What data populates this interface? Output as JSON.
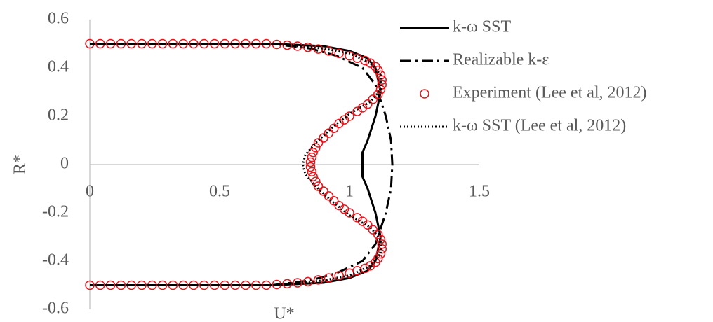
{
  "chart_data": {
    "type": "line",
    "x_label": "U*",
    "y_label": "R*",
    "xlim": [
      0,
      1.5
    ],
    "xticks": [
      0,
      0.5,
      1,
      1.5
    ],
    "ylim": [
      -0.6,
      0.6
    ],
    "yticks": [
      -0.6,
      -0.4,
      -0.2,
      0,
      0.2,
      0.4,
      0.6
    ],
    "grid": false,
    "legend": "right",
    "series": [
      {
        "name": "k-ω SST",
        "color": "#000000",
        "style": "solid",
        "x": [
          0,
          0.7,
          0.9,
          1.0,
          1.07,
          1.1,
          1.12,
          1.1,
          1.07,
          1.05,
          1.05,
          1.07,
          1.1,
          1.12,
          1.1,
          1.07,
          1.0,
          0.9,
          0.7,
          0
        ],
        "values": [
          0.5,
          0.5,
          0.49,
          0.47,
          0.44,
          0.4,
          0.3,
          0.2,
          0.1,
          0.05,
          -0.05,
          -0.1,
          -0.2,
          -0.3,
          -0.4,
          -0.44,
          -0.47,
          -0.49,
          -0.5,
          -0.5
        ]
      },
      {
        "name": "Realizable k-ε",
        "color": "#000000",
        "style": "dashdot",
        "x": [
          0,
          0.7,
          0.85,
          0.95,
          1.05,
          1.1,
          1.14,
          1.16,
          1.165,
          1.16,
          1.14,
          1.1,
          1.05,
          0.95,
          0.85,
          0.7,
          0
        ],
        "values": [
          0.5,
          0.5,
          0.48,
          0.45,
          0.4,
          0.33,
          0.2,
          0.1,
          0,
          -0.1,
          -0.2,
          -0.33,
          -0.4,
          -0.45,
          -0.48,
          -0.5,
          -0.5
        ]
      },
      {
        "name": "Experiment (Lee et al, 2012)",
        "color": "#e8141c",
        "style": "circle",
        "x": [
          0,
          0.04,
          0.08,
          0.12,
          0.16,
          0.2,
          0.24,
          0.28,
          0.32,
          0.36,
          0.4,
          0.44,
          0.48,
          0.52,
          0.56,
          0.6,
          0.64,
          0.68,
          0.72,
          0.76,
          0.8,
          0.84,
          0.88,
          0.92,
          0.96,
          1,
          1.03,
          1.06,
          1.08,
          1.1,
          1.11,
          1.12,
          1.125,
          1.125,
          1.12,
          1.11,
          1.09,
          1.07,
          1.05,
          1.03,
          1,
          0.98,
          0.96,
          0.94,
          0.92,
          0.9,
          0.88,
          0.87,
          0.86,
          0.855,
          0.85,
          0.85,
          0.855,
          0.86,
          0.87,
          0.88,
          0.9,
          0.92,
          0.94,
          0.96,
          0.98,
          1,
          1.03,
          1.05,
          1.07,
          1.09,
          1.11,
          1.12,
          1.125,
          1.125,
          1.12,
          1.11,
          1.1,
          1.08,
          1.06,
          1.03,
          1,
          0.96,
          0.92,
          0.88,
          0.84,
          0.8,
          0.76,
          0.72,
          0.68,
          0.64,
          0.6,
          0.56,
          0.52,
          0.48,
          0.44,
          0.4,
          0.36,
          0.32,
          0.28,
          0.24,
          0.2,
          0.16,
          0.12,
          0.08,
          0.04,
          0
        ],
        "values": [
          0.5,
          0.5,
          0.5,
          0.5,
          0.5,
          0.5,
          0.5,
          0.5,
          0.5,
          0.5,
          0.5,
          0.5,
          0.5,
          0.5,
          0.5,
          0.5,
          0.5,
          0.5,
          0.497,
          0.494,
          0.49,
          0.485,
          0.478,
          0.47,
          0.46,
          0.45,
          0.44,
          0.43,
          0.42,
          0.405,
          0.39,
          0.37,
          0.35,
          0.33,
          0.31,
          0.29,
          0.27,
          0.25,
          0.235,
          0.22,
          0.2,
          0.185,
          0.17,
          0.15,
          0.13,
          0.11,
          0.09,
          0.07,
          0.05,
          0.03,
          0.01,
          -0.01,
          -0.03,
          -0.05,
          -0.07,
          -0.09,
          -0.11,
          -0.13,
          -0.15,
          -0.17,
          -0.185,
          -0.2,
          -0.22,
          -0.235,
          -0.25,
          -0.27,
          -0.29,
          -0.31,
          -0.33,
          -0.35,
          -0.37,
          -0.39,
          -0.405,
          -0.42,
          -0.43,
          -0.44,
          -0.45,
          -0.46,
          -0.47,
          -0.478,
          -0.485,
          -0.49,
          -0.494,
          -0.497,
          -0.5,
          -0.5,
          -0.5,
          -0.5,
          -0.5,
          -0.5,
          -0.5,
          -0.5,
          -0.5,
          -0.5,
          -0.5,
          -0.5,
          -0.5,
          -0.5,
          -0.5,
          -0.5,
          -0.5,
          -0.5
        ]
      },
      {
        "name": "k-ω SST (Lee et al, 2012)",
        "color": "#000000",
        "style": "dotted",
        "x": [
          0,
          0.7,
          0.9,
          1.0,
          1.08,
          1.12,
          1.12,
          1.08,
          1.0,
          0.93,
          0.87,
          0.83,
          0.82,
          0.83,
          0.87,
          0.93,
          1.0,
          1.08,
          1.12,
          1.12,
          1.08,
          1.0,
          0.9,
          0.7,
          0
        ],
        "values": [
          0.5,
          0.5,
          0.48,
          0.46,
          0.42,
          0.37,
          0.31,
          0.26,
          0.21,
          0.15,
          0.09,
          0.04,
          0,
          -0.04,
          -0.09,
          -0.15,
          -0.21,
          -0.26,
          -0.31,
          -0.37,
          -0.42,
          -0.46,
          -0.48,
          -0.5,
          -0.5
        ]
      }
    ]
  }
}
